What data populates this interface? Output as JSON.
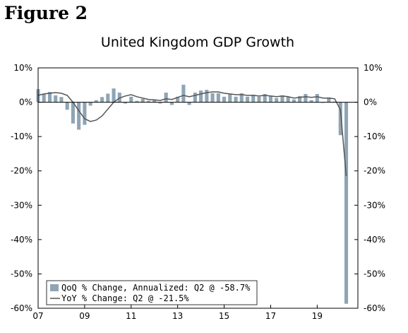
{
  "figure_label": "Figure 2",
  "chart_data": {
    "type": "bar+line",
    "title": "United Kingdom GDP Growth",
    "xlabel": "",
    "ylabel": "",
    "ylim": [
      -60,
      10
    ],
    "yticks": [
      10,
      0,
      -10,
      -20,
      -30,
      -40,
      -50,
      -60
    ],
    "ytick_labels": [
      "10%",
      "0%",
      "-10%",
      "-20%",
      "-30%",
      "-40%",
      "-50%",
      "-60%"
    ],
    "xlim": [
      2007.0,
      2020.75
    ],
    "xticks": [
      2007,
      2009,
      2011,
      2013,
      2015,
      2017,
      2019
    ],
    "xtick_labels": [
      "07",
      "09",
      "11",
      "13",
      "15",
      "17",
      "19"
    ],
    "grid": false,
    "legend_position": "bottom-left",
    "colors": {
      "bars": "#8fa5b5",
      "line": "#555555",
      "axis": "#000000"
    },
    "series": [
      {
        "name": "QoQ % Change, Annualized: Q2 @ -58.7%",
        "type": "bar",
        "x": [
          2007.0,
          2007.25,
          2007.5,
          2007.75,
          2008.0,
          2008.25,
          2008.5,
          2008.75,
          2009.0,
          2009.25,
          2009.5,
          2009.75,
          2010.0,
          2010.25,
          2010.5,
          2010.75,
          2011.0,
          2011.25,
          2011.5,
          2011.75,
          2012.0,
          2012.25,
          2012.5,
          2012.75,
          2013.0,
          2013.25,
          2013.5,
          2013.75,
          2014.0,
          2014.25,
          2014.5,
          2014.75,
          2015.0,
          2015.25,
          2015.5,
          2015.75,
          2016.0,
          2016.25,
          2016.5,
          2016.75,
          2017.0,
          2017.25,
          2017.5,
          2017.75,
          2018.0,
          2018.25,
          2018.5,
          2018.75,
          2019.0,
          2019.25,
          2019.5,
          2019.75,
          2020.0,
          2020.25
        ],
        "values": [
          3.8,
          2.5,
          3.0,
          2.0,
          1.5,
          -2.2,
          -6.2,
          -8.0,
          -6.6,
          -1.0,
          0.6,
          1.5,
          2.5,
          4.0,
          2.8,
          -0.4,
          1.6,
          0.4,
          1.0,
          0.4,
          0.8,
          -0.4,
          2.8,
          -0.8,
          1.6,
          5.1,
          -0.8,
          2.8,
          3.4,
          3.6,
          2.6,
          2.6,
          1.6,
          2.4,
          1.6,
          2.6,
          1.6,
          2.2,
          1.6,
          2.4,
          1.8,
          1.2,
          2.0,
          1.6,
          0.8,
          1.8,
          2.4,
          0.6,
          2.4,
          -0.2,
          1.4,
          0.2,
          -9.6,
          -58.7
        ]
      },
      {
        "name": "YoY % Change: Q2 @ -21.5%",
        "type": "line",
        "x": [
          2007.0,
          2007.25,
          2007.5,
          2007.75,
          2008.0,
          2008.25,
          2008.5,
          2008.75,
          2009.0,
          2009.25,
          2009.5,
          2009.75,
          2010.0,
          2010.25,
          2010.5,
          2010.75,
          2011.0,
          2011.25,
          2011.5,
          2011.75,
          2012.0,
          2012.25,
          2012.5,
          2012.75,
          2013.0,
          2013.25,
          2013.5,
          2013.75,
          2014.0,
          2014.25,
          2014.5,
          2014.75,
          2015.0,
          2015.25,
          2015.5,
          2015.75,
          2016.0,
          2016.25,
          2016.5,
          2016.75,
          2017.0,
          2017.25,
          2017.5,
          2017.75,
          2018.0,
          2018.25,
          2018.5,
          2018.75,
          2019.0,
          2019.25,
          2019.5,
          2019.75,
          2020.0,
          2020.25
        ],
        "values": [
          2.0,
          2.4,
          2.6,
          2.8,
          2.6,
          2.0,
          0.0,
          -2.5,
          -4.8,
          -5.6,
          -5.2,
          -4.0,
          -2.0,
          0.0,
          1.2,
          1.8,
          2.2,
          1.6,
          1.2,
          0.8,
          0.7,
          0.5,
          1.0,
          0.8,
          1.4,
          2.0,
          1.6,
          2.0,
          2.4,
          2.8,
          3.0,
          3.0,
          2.6,
          2.4,
          2.2,
          2.2,
          2.0,
          2.0,
          1.8,
          2.0,
          1.8,
          1.6,
          1.8,
          1.6,
          1.2,
          1.4,
          1.6,
          1.4,
          1.6,
          1.2,
          1.2,
          1.0,
          -2.2,
          -21.5
        ]
      }
    ]
  }
}
